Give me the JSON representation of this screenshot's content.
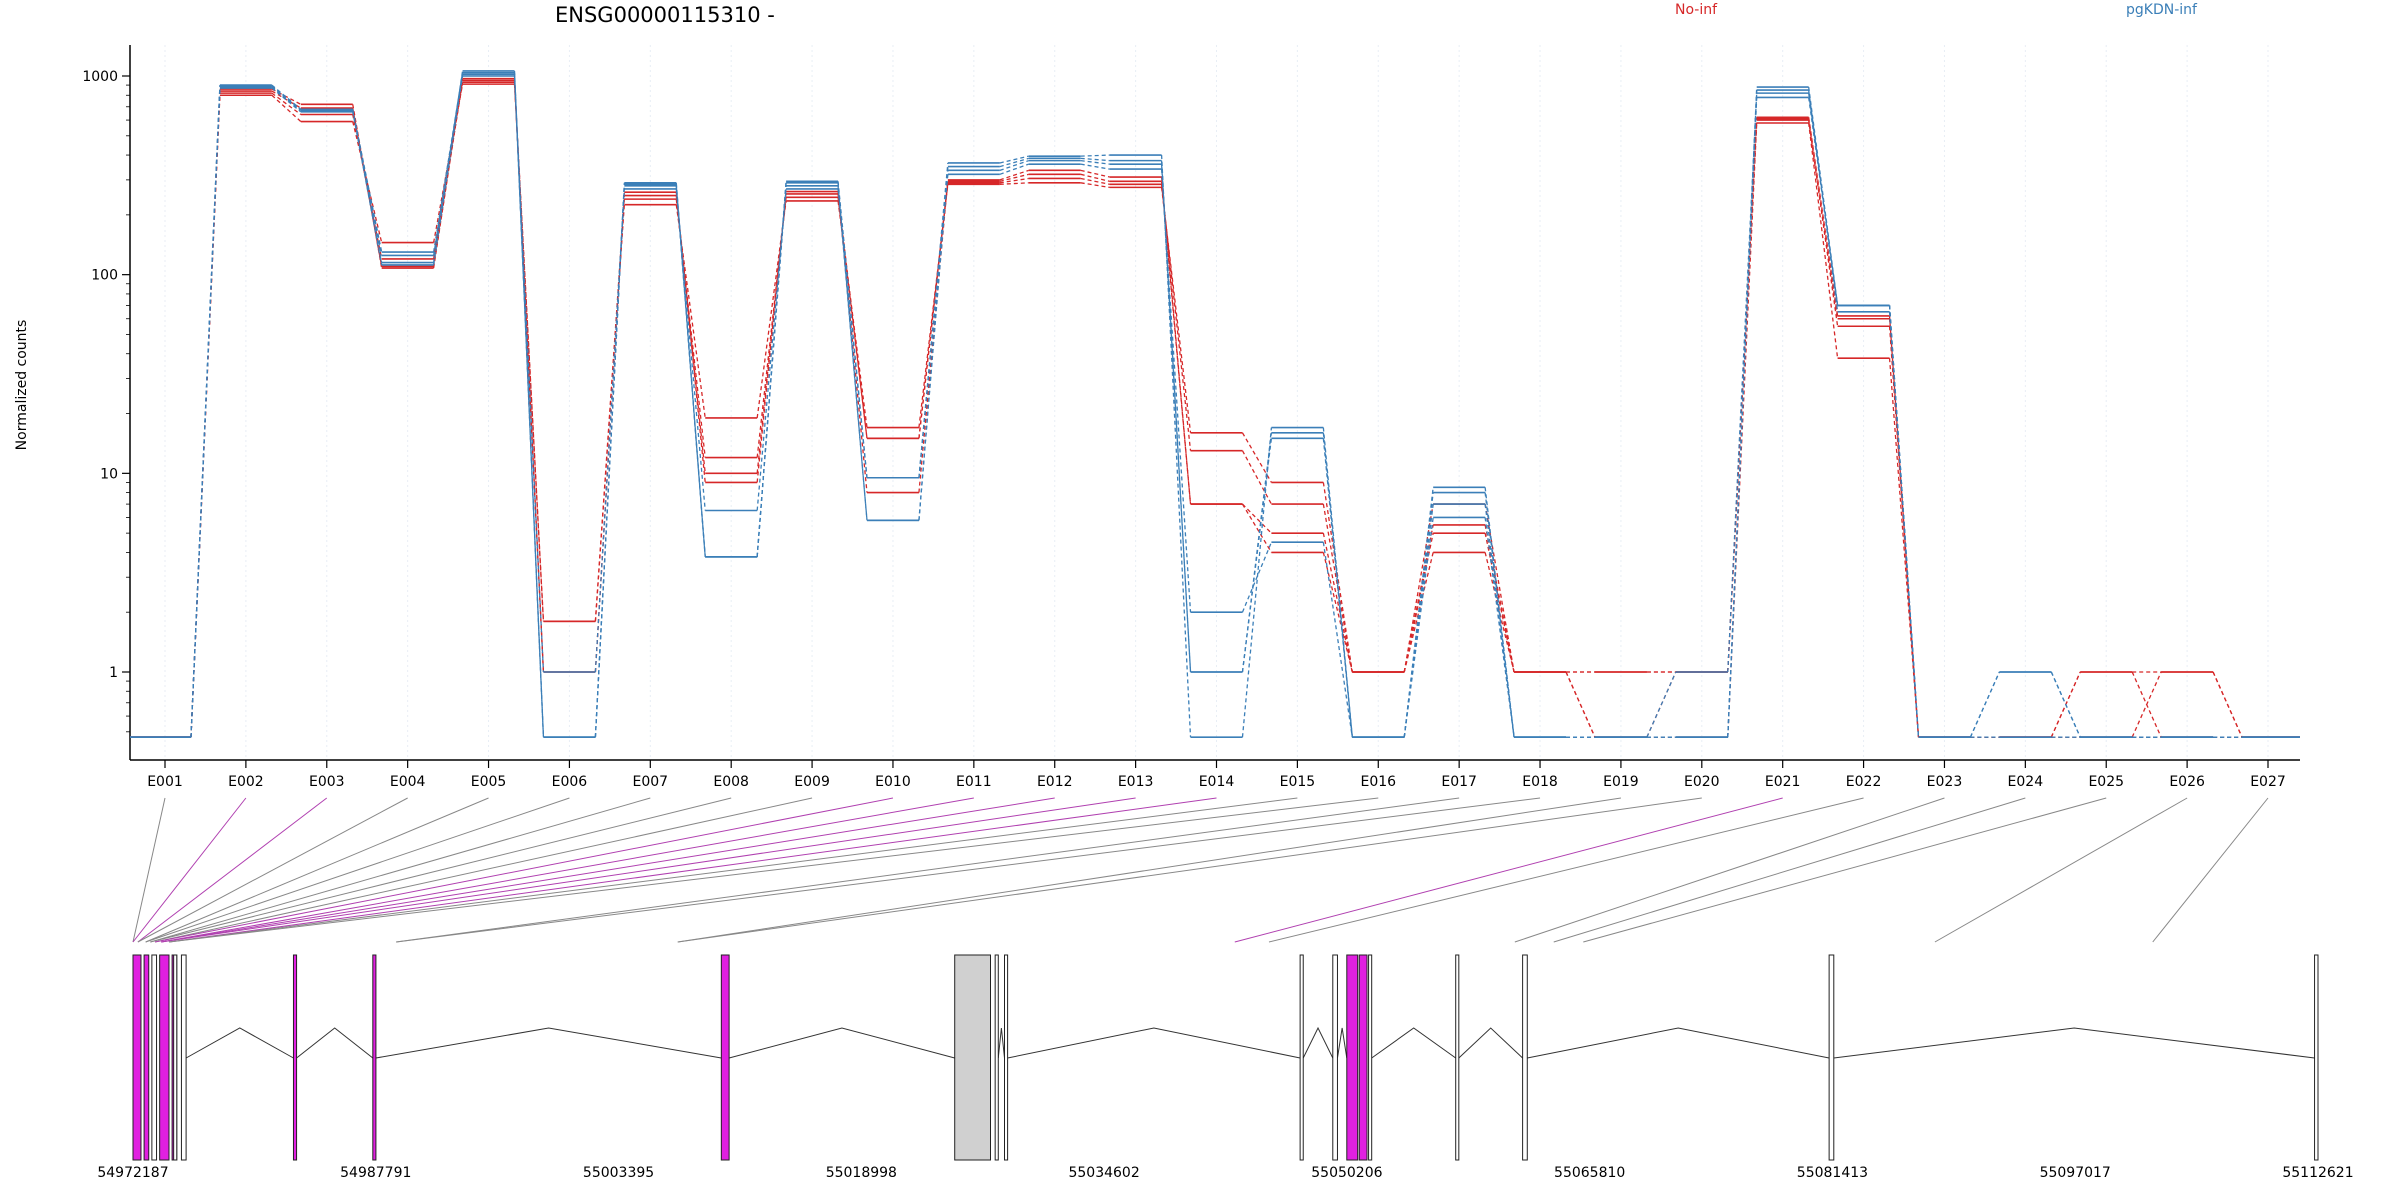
{
  "chart_data": {
    "type": "line",
    "title": "ENSG00000115310 -",
    "ylabel": "Normalized counts",
    "yscale": "log",
    "ylim": [
      0.4,
      1350
    ],
    "yticks": [
      1,
      10,
      100,
      1000
    ],
    "ytick_labels": [
      "1",
      "10",
      "100",
      "1000"
    ],
    "grid": "vertical, light dotted",
    "legend": [
      {
        "name": "No-inf",
        "color": "#d62728"
      },
      {
        "name": "pgKDN-inf",
        "color": "#3b7fb8"
      }
    ],
    "categories": [
      "E001",
      "E002",
      "E003",
      "E004",
      "E005",
      "E006",
      "E007",
      "E008",
      "E009",
      "E010",
      "E011",
      "E012",
      "E013",
      "E014",
      "E015",
      "E016",
      "E017",
      "E018",
      "E019",
      "E020",
      "E021",
      "E022",
      "E023",
      "E024",
      "E025",
      "E026",
      "E027"
    ],
    "series": [
      {
        "group": "No-inf",
        "values": [
          0.47,
          800,
          590,
          145,
          910,
          1.8,
          225,
          19,
          235,
          17,
          285,
          290,
          275,
          16,
          9,
          1,
          7,
          1,
          0.47,
          0.47,
          580,
          38,
          0.47,
          0.47,
          0.47,
          0.47,
          0.47
        ]
      },
      {
        "group": "No-inf",
        "values": [
          0.47,
          820,
          640,
          120,
          930,
          1.8,
          240,
          12,
          245,
          15,
          290,
          305,
          285,
          13,
          7,
          1,
          5.5,
          1,
          1,
          1,
          600,
          55,
          0.47,
          0.47,
          1,
          0.47,
          0.47
        ]
      },
      {
        "group": "No-inf",
        "values": [
          0.47,
          840,
          690,
          110,
          950,
          1,
          250,
          10,
          255,
          15,
          295,
          320,
          295,
          7,
          5,
          1,
          5,
          1,
          1,
          1,
          610,
          60,
          0.47,
          0.47,
          1,
          1,
          0.47
        ]
      },
      {
        "group": "No-inf",
        "values": [
          0.47,
          860,
          720,
          108,
          970,
          1,
          260,
          9,
          262,
          8,
          300,
          335,
          310,
          7,
          4,
          1,
          4,
          1,
          0.47,
          1,
          620,
          62,
          0.47,
          0.47,
          0.47,
          1,
          0.47
        ]
      },
      {
        "group": "pgKDN-inf",
        "values": [
          0.47,
          870,
          660,
          112,
          1000,
          1,
          270,
          6.5,
          270,
          9.5,
          320,
          360,
          340,
          2,
          4.5,
          0.47,
          6,
          0.47,
          0.47,
          0.47,
          780,
          70,
          0.47,
          1,
          0.47,
          0.47,
          0.47
        ]
      },
      {
        "group": "pgKDN-inf",
        "values": [
          0.47,
          880,
          670,
          125,
          1020,
          0.47,
          280,
          3.8,
          280,
          5.8,
          335,
          375,
          360,
          1,
          15,
          0.47,
          7,
          0.47,
          0.47,
          1,
          820,
          70,
          0.47,
          1,
          0.47,
          0.47,
          0.47
        ]
      },
      {
        "group": "pgKDN-inf",
        "values": [
          0.47,
          890,
          675,
          130,
          1040,
          0.47,
          285,
          3.8,
          290,
          5.8,
          350,
          385,
          375,
          1,
          16,
          0.47,
          8,
          0.47,
          0.47,
          0.47,
          850,
          65,
          0.47,
          0.47,
          0.47,
          0.47,
          0.47
        ]
      },
      {
        "group": "pgKDN-inf",
        "values": [
          0.47,
          900,
          680,
          115,
          1060,
          0.47,
          290,
          3.8,
          295,
          9.5,
          365,
          395,
          400,
          0.47,
          17,
          0.47,
          8.5,
          0.47,
          0.47,
          0.47,
          880,
          70,
          0.47,
          0.47,
          0.47,
          0.47,
          0.47
        ]
      }
    ],
    "gene_model": {
      "coordinate_labels": [
        "54972187",
        "54987791",
        "55003395",
        "55018998",
        "55034602",
        "55050206",
        "55065810",
        "55081413",
        "55097017",
        "55112621"
      ],
      "coordinate_range": [
        54972187,
        55112621
      ],
      "exon_starts": [
        54972187,
        54972500,
        54973000,
        54973300,
        54973600,
        54974000,
        54974500,
        54989100,
        55007200,
        55043000,
        55045200,
        55061000,
        55063500,
        55065400,
        55088000,
        55102000
      ],
      "exons": [
        {
          "start": 54972187,
          "end": 54972700,
          "fill": "#e020e0"
        },
        {
          "start": 54972900,
          "end": 54973200,
          "fill": "#e020e0"
        },
        {
          "start": 54973400,
          "end": 54973700,
          "fill": "#ffffff"
        },
        {
          "start": 54973900,
          "end": 54974500,
          "fill": "#e020e0"
        },
        {
          "start": 54974700,
          "end": 54975000,
          "fill": "#e020e0"
        },
        {
          "start": 54975300,
          "end": 54975600,
          "fill": "#ffffff"
        },
        {
          "start": 54974800,
          "end": 54975000,
          "fill": "#ffffff"
        },
        {
          "start": 54982500,
          "end": 54982700,
          "fill": "#e020e0"
        },
        {
          "start": 54987600,
          "end": 54987800,
          "fill": "#e020e0"
        },
        {
          "start": 55010000,
          "end": 55010500,
          "fill": "#e020e0"
        },
        {
          "start": 55025000,
          "end": 55027300,
          "fill": "#d0d0d0"
        },
        {
          "start": 55027600,
          "end": 55027800,
          "fill": "#ffffff"
        },
        {
          "start": 55028200,
          "end": 55028400,
          "fill": "#ffffff"
        },
        {
          "start": 55047200,
          "end": 55047400,
          "fill": "#ffffff"
        },
        {
          "start": 55049300,
          "end": 55049600,
          "fill": "#ffffff"
        },
        {
          "start": 55050200,
          "end": 55050900,
          "fill": "#e020e0"
        },
        {
          "start": 55051000,
          "end": 55051500,
          "fill": "#e020e0"
        },
        {
          "start": 55051600,
          "end": 55051800,
          "fill": "#ffffff"
        },
        {
          "start": 55057200,
          "end": 55057400,
          "fill": "#ffffff"
        },
        {
          "start": 55061500,
          "end": 55061800,
          "fill": "#ffffff"
        },
        {
          "start": 55081200,
          "end": 55081500,
          "fill": "#ffffff"
        },
        {
          "start": 55112400,
          "end": 55112621,
          "fill": "#ffffff"
        }
      ]
    }
  }
}
